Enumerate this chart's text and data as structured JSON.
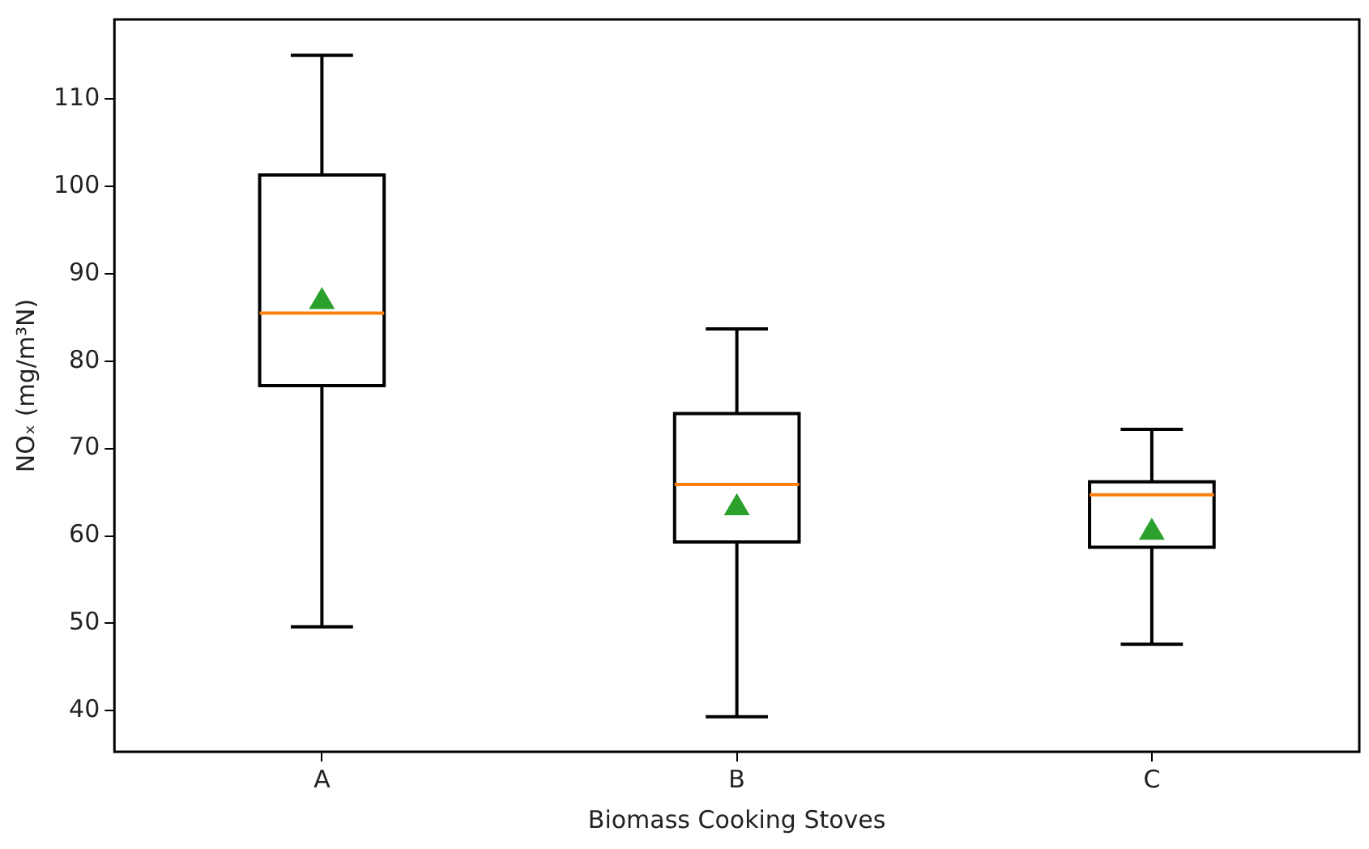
{
  "chart_data": {
    "type": "box",
    "xlabel": "Biomass Cooking Stoves",
    "ylabel": "NOₓ (mg/m³N)",
    "categories": [
      "A",
      "B",
      "C"
    ],
    "boxes": [
      {
        "low": 49.6,
        "q1": 77.2,
        "median": 85.5,
        "q3": 101.3,
        "high": 115.0,
        "mean": 87.0
      },
      {
        "low": 39.3,
        "q1": 59.3,
        "median": 65.9,
        "q3": 74.0,
        "high": 83.7,
        "mean": 63.4
      },
      {
        "low": 47.6,
        "q1": 58.7,
        "median": 64.7,
        "q3": 66.2,
        "high": 72.2,
        "mean": 60.6
      }
    ],
    "color": "#000000",
    "ylim": [
      35.3,
      119.1
    ],
    "yticks": [
      40,
      50,
      60,
      70,
      80,
      90,
      100,
      110
    ],
    "grid": false,
    "legend": false,
    "marker": "triangle"
  }
}
